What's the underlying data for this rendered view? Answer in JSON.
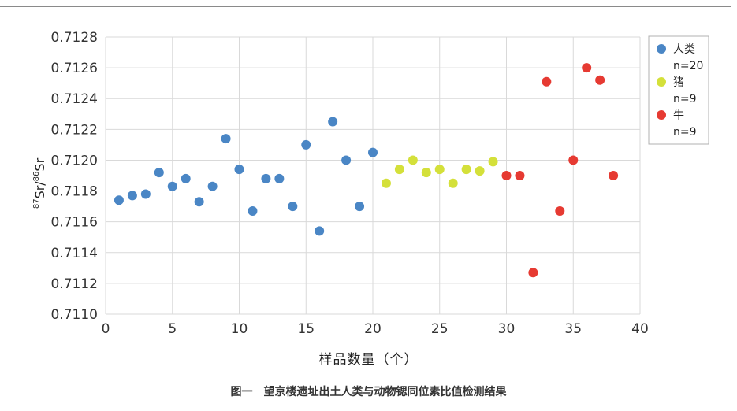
{
  "chart_data": {
    "type": "scatter",
    "title": "",
    "caption": "图一　望京楼遗址出土人类与动物锶同位素比值检测结果",
    "xlabel": "样品数量（个）",
    "ylabel_prefix_sup": "87",
    "ylabel_mid": "Sr/",
    "ylabel_mid_sup": "86",
    "ylabel_end": "Sr",
    "xlim": [
      0,
      40
    ],
    "ylim": [
      0.711,
      0.7128
    ],
    "xticks": [
      "0",
      "5",
      "10",
      "15",
      "20",
      "25",
      "30",
      "35",
      "40"
    ],
    "yticks": [
      "0.7110",
      "0.7112",
      "0.7114",
      "0.7116",
      "0.7118",
      "0.7120",
      "0.7122",
      "0.7124",
      "0.7126",
      "0.7128"
    ],
    "grid": true,
    "legend_position": "top-right",
    "series": [
      {
        "name": "人类",
        "count_label": "n=20",
        "color": "#4a86c5",
        "points": [
          [
            1,
            0.71174
          ],
          [
            2,
            0.71177
          ],
          [
            3,
            0.71178
          ],
          [
            4,
            0.71192
          ],
          [
            5,
            0.71183
          ],
          [
            6,
            0.71188
          ],
          [
            7,
            0.71173
          ],
          [
            8,
            0.71183
          ],
          [
            9,
            0.71214
          ],
          [
            10,
            0.71194
          ],
          [
            11,
            0.71167
          ],
          [
            12,
            0.71188
          ],
          [
            13,
            0.71188
          ],
          [
            14,
            0.7117
          ],
          [
            15,
            0.7121
          ],
          [
            16,
            0.71154
          ],
          [
            17,
            0.71225
          ],
          [
            18,
            0.712
          ],
          [
            19,
            0.7117
          ],
          [
            20,
            0.71205
          ]
        ]
      },
      {
        "name": "猪",
        "count_label": "n=9",
        "color": "#d4e03a",
        "points": [
          [
            21,
            0.71185
          ],
          [
            22,
            0.71194
          ],
          [
            23,
            0.712
          ],
          [
            24,
            0.71192
          ],
          [
            25,
            0.71194
          ],
          [
            26,
            0.71185
          ],
          [
            27,
            0.71194
          ],
          [
            28,
            0.71193
          ],
          [
            29,
            0.71199
          ]
        ]
      },
      {
        "name": "牛",
        "count_label": "n=9",
        "color": "#e63a32",
        "points": [
          [
            30,
            0.7119
          ],
          [
            31,
            0.7119
          ],
          [
            32,
            0.71127
          ],
          [
            33,
            0.71251
          ],
          [
            34,
            0.71167
          ],
          [
            35,
            0.712
          ],
          [
            36,
            0.7126
          ],
          [
            37,
            0.71252
          ],
          [
            38,
            0.7119
          ]
        ]
      }
    ]
  }
}
